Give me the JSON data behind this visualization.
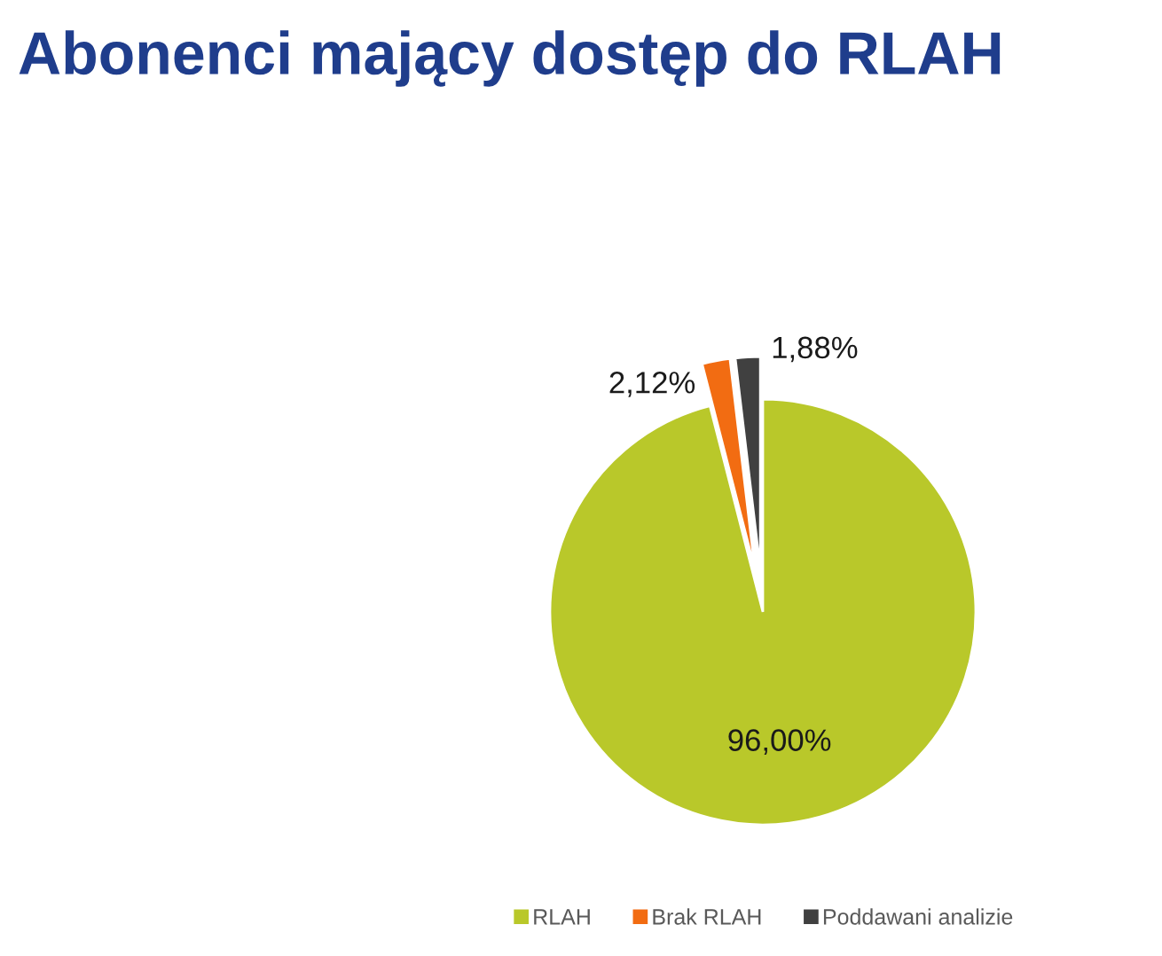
{
  "chart_data": {
    "type": "pie",
    "title": "Abonenci mający dostęp do RLAH",
    "categories": [
      "RLAH",
      "Brak RLAH",
      "Poddawani analizie"
    ],
    "values": [
      96.0,
      2.12,
      1.88
    ],
    "colors": [
      "#b9c82a",
      "#f26c12",
      "#404040"
    ],
    "value_labels": [
      "96,00%",
      "2,12%",
      "1,88%"
    ],
    "legend": "bottom"
  }
}
